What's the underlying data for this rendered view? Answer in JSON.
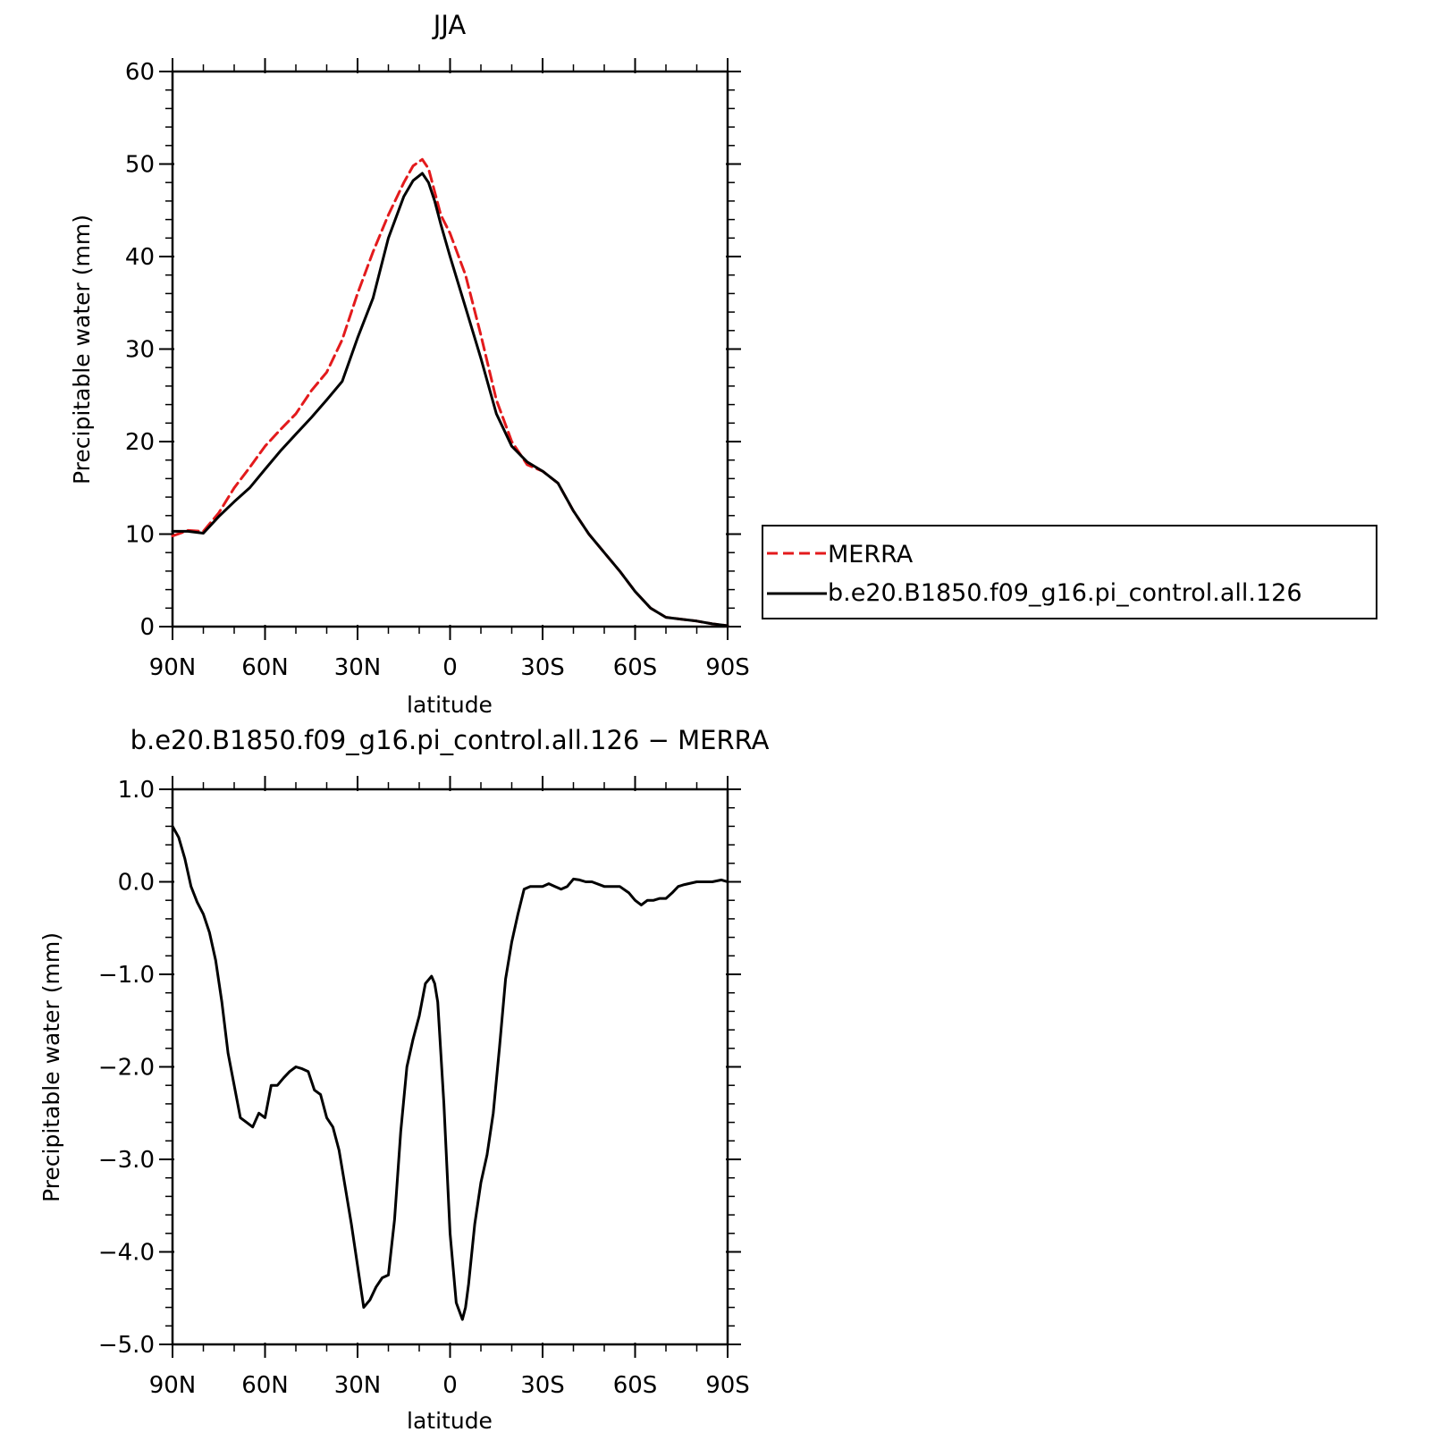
{
  "chart_data": [
    {
      "type": "line",
      "title": "JJA",
      "xlabel": "latitude",
      "ylabel": "Precipitable water (mm)",
      "xlim": [
        90,
        -90
      ],
      "ylim": [
        0,
        60
      ],
      "x_tick_labels": [
        "90N",
        "60N",
        "30N",
        "0",
        "30S",
        "60S",
        "90S"
      ],
      "y_tick_labels": [
        "0",
        "10",
        "20",
        "30",
        "40",
        "50",
        "60"
      ],
      "legend": "right",
      "series": [
        {
          "name": "MERRA",
          "color": "#e31a1c",
          "dashed": true,
          "x": [
            90,
            85,
            80,
            75,
            70,
            65,
            60,
            55,
            50,
            45,
            40,
            35,
            30,
            25,
            20,
            15,
            12,
            9,
            7,
            5,
            3,
            0,
            -5,
            -10,
            -15,
            -20,
            -25,
            -30,
            -35,
            -40,
            -45,
            -50,
            -55,
            -60,
            -65,
            -70,
            -75,
            -80,
            -85,
            -90
          ],
          "y": [
            9.8,
            10.4,
            10.3,
            12.3,
            15.0,
            17.2,
            19.5,
            21.3,
            23.0,
            25.5,
            27.5,
            31.0,
            36.0,
            40.5,
            44.5,
            48.0,
            49.8,
            50.5,
            49.5,
            47.0,
            44.5,
            42.5,
            38.0,
            31.5,
            24.5,
            20.0,
            17.5,
            16.8,
            15.5,
            12.5,
            10.0,
            8.0,
            6.0,
            3.8,
            2.0,
            1.0,
            0.8,
            0.6,
            0.3,
            0.1
          ]
        },
        {
          "name": "b.e20.B1850.f09_g16.pi_control.all.126",
          "color": "#000000",
          "dashed": false,
          "x": [
            90,
            85,
            80,
            75,
            70,
            65,
            60,
            55,
            50,
            45,
            40,
            35,
            30,
            25,
            20,
            15,
            12,
            9,
            7,
            5,
            3,
            0,
            -5,
            -10,
            -15,
            -20,
            -25,
            -30,
            -35,
            -40,
            -45,
            -50,
            -55,
            -60,
            -65,
            -70,
            -75,
            -80,
            -85,
            -90
          ],
          "y": [
            10.3,
            10.3,
            10.1,
            11.9,
            13.5,
            15.0,
            17.0,
            19.0,
            20.8,
            22.6,
            24.5,
            26.5,
            31.2,
            35.5,
            42.0,
            46.5,
            48.2,
            49.0,
            48.0,
            46.0,
            43.5,
            40.0,
            34.5,
            29.0,
            23.0,
            19.5,
            17.8,
            16.8,
            15.5,
            12.5,
            10.0,
            8.0,
            6.0,
            3.8,
            2.0,
            1.0,
            0.8,
            0.6,
            0.3,
            0.1
          ]
        }
      ]
    },
    {
      "type": "line",
      "title": "b.e20.B1850.f09_g16.pi_control.all.126 − MERRA",
      "xlabel": "latitude",
      "ylabel": "Precipitable water (mm)",
      "xlim": [
        90,
        -90
      ],
      "ylim": [
        -5.0,
        1.0
      ],
      "x_tick_labels": [
        "90N",
        "60N",
        "30N",
        "0",
        "30S",
        "60S",
        "90S"
      ],
      "y_tick_labels": [
        "−5.0",
        "−4.0",
        "−3.0",
        "−2.0",
        "−1.0",
        "0.0",
        "1.0"
      ],
      "series": [
        {
          "color": "#000000",
          "dashed": false,
          "x": [
            90,
            88,
            86,
            84,
            82,
            80,
            78,
            76,
            74,
            72,
            70,
            68,
            66,
            64,
            62,
            60,
            58,
            56,
            54,
            52,
            50,
            48,
            46,
            44,
            42,
            40,
            38,
            36,
            34,
            32,
            30,
            28,
            26,
            24,
            22,
            20,
            18,
            16,
            14,
            12,
            10,
            8,
            6,
            5,
            4,
            2,
            0,
            -2,
            -4,
            -5,
            -6,
            -8,
            -10,
            -12,
            -14,
            -16,
            -18,
            -20,
            -22,
            -24,
            -26,
            -28,
            -30,
            -32,
            -34,
            -36,
            -38,
            -40,
            -42,
            -44,
            -46,
            -50,
            -55,
            -58,
            -60,
            -62,
            -64,
            -66,
            -68,
            -70,
            -72,
            -74,
            -76,
            -80,
            -85,
            -88,
            -90
          ],
          "y": [
            0.6,
            0.48,
            0.25,
            -0.05,
            -0.22,
            -0.35,
            -0.55,
            -0.85,
            -1.3,
            -1.85,
            -2.2,
            -2.55,
            -2.6,
            -2.65,
            -2.5,
            -2.55,
            -2.2,
            -2.2,
            -2.12,
            -2.05,
            -2.0,
            -2.02,
            -2.05,
            -2.25,
            -2.3,
            -2.55,
            -2.65,
            -2.9,
            -3.3,
            -3.7,
            -4.15,
            -4.6,
            -4.52,
            -4.38,
            -4.28,
            -4.25,
            -3.65,
            -2.7,
            -2.0,
            -1.7,
            -1.45,
            -1.1,
            -1.02,
            -1.1,
            -1.3,
            -2.4,
            -3.8,
            -4.55,
            -4.73,
            -4.6,
            -4.35,
            -3.7,
            -3.25,
            -2.95,
            -2.5,
            -1.8,
            -1.05,
            -0.65,
            -0.35,
            -0.08,
            -0.05,
            -0.05,
            -0.05,
            -0.02,
            -0.05,
            -0.08,
            -0.05,
            0.03,
            0.02,
            0.0,
            0.0,
            -0.05,
            -0.05,
            -0.12,
            -0.2,
            -0.25,
            -0.2,
            -0.2,
            -0.18,
            -0.18,
            -0.12,
            -0.05,
            -0.03,
            0.0,
            0.0,
            0.02,
            0.0
          ]
        }
      ]
    }
  ]
}
